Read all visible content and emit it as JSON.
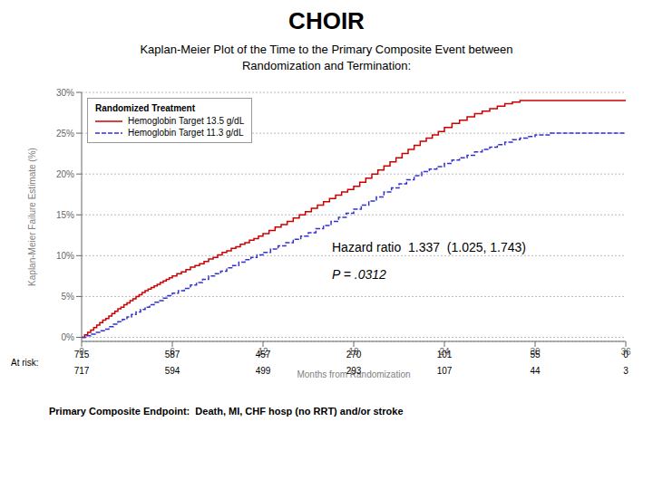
{
  "chart_data": {
    "type": "step",
    "title": "CHOIR",
    "subtitle": "Kaplan-Meier Plot of the Time to the Primary Composite Event between\nRandomization and Termination:",
    "xlabel": "Months from Randomization",
    "ylabel": "Kaplan-Meier Failure Estimate (%)",
    "xlim": [
      0,
      36
    ],
    "ylim": [
      -0.5,
      30
    ],
    "xticks": [
      0,
      6,
      12,
      18,
      24,
      30,
      36
    ],
    "yticks": [
      {
        "value": 0,
        "label": "0%"
      },
      {
        "value": 5,
        "label": "5%"
      },
      {
        "value": 10,
        "label": "10%"
      },
      {
        "value": 15,
        "label": "15%"
      },
      {
        "value": 20,
        "label": "20%"
      },
      {
        "value": 25,
        "label": "25%"
      },
      {
        "value": 30,
        "label": "30%"
      }
    ],
    "grid": "y",
    "legend": "upper left",
    "legend_title": "Randomized Treatment",
    "series": [
      {
        "name": "Hemoglobin Target 13.5 g/dL",
        "color": "#cc0000",
        "line_style": "solid",
        "x": [
          0,
          0.2,
          0.4,
          0.6,
          0.8,
          1.0,
          1.2,
          1.4,
          1.6,
          1.8,
          2.0,
          2.2,
          2.4,
          2.6,
          2.8,
          3.0,
          3.2,
          3.4,
          3.6,
          3.8,
          4.0,
          4.2,
          4.4,
          4.6,
          4.8,
          5.0,
          5.2,
          5.4,
          5.6,
          5.8,
          6.0,
          6.3,
          6.6,
          6.9,
          7.2,
          7.5,
          7.8,
          8.1,
          8.4,
          8.7,
          9.0,
          9.3,
          9.6,
          9.9,
          10.2,
          10.5,
          10.8,
          11.1,
          11.4,
          11.7,
          12.0,
          12.4,
          12.8,
          13.2,
          13.6,
          14.0,
          14.4,
          14.8,
          15.2,
          15.6,
          16.0,
          16.4,
          16.8,
          17.2,
          17.6,
          18.0,
          18.4,
          18.8,
          19.2,
          19.6,
          20.0,
          20.4,
          20.8,
          21.2,
          21.6,
          22.0,
          22.4,
          22.8,
          23.2,
          23.6,
          24.0,
          24.5,
          25.0,
          25.5,
          26.0,
          26.5,
          27.0,
          27.5,
          28.0,
          28.5,
          29.0,
          29.5,
          30.0,
          31.0,
          36.0
        ],
        "values": [
          0,
          0.3,
          0.6,
          0.9,
          1.2,
          1.5,
          1.8,
          2.1,
          2.3,
          2.6,
          2.9,
          3.2,
          3.5,
          3.7,
          4.0,
          4.2,
          4.5,
          4.7,
          5.0,
          5.2,
          5.5,
          5.7,
          5.9,
          6.1,
          6.3,
          6.5,
          6.7,
          6.9,
          7.1,
          7.3,
          7.5,
          7.8,
          8.0,
          8.3,
          8.6,
          8.8,
          9.0,
          9.3,
          9.6,
          9.8,
          10.1,
          10.4,
          10.6,
          10.9,
          11.1,
          11.4,
          11.6,
          11.9,
          12.1,
          12.4,
          12.7,
          13.1,
          13.5,
          13.8,
          14.2,
          14.6,
          15.0,
          15.4,
          15.8,
          16.2,
          16.6,
          17.0,
          17.4,
          17.8,
          18.1,
          18.5,
          19.0,
          19.5,
          20.0,
          20.5,
          21.0,
          21.5,
          22.0,
          22.5,
          23.0,
          23.5,
          24.0,
          24.4,
          24.8,
          25.2,
          25.7,
          26.2,
          26.6,
          27.0,
          27.4,
          27.7,
          28.0,
          28.3,
          28.6,
          28.8,
          29.0,
          29.0,
          29.0,
          29.0,
          29.0
        ]
      },
      {
        "name": "Hemoglobin Target 11.3 g/dL",
        "color": "#3333cc",
        "line_style": "dashed",
        "x": [
          0,
          0.3,
          0.6,
          0.9,
          1.2,
          1.5,
          1.8,
          2.1,
          2.4,
          2.7,
          3.0,
          3.3,
          3.6,
          3.9,
          4.2,
          4.5,
          4.8,
          5.1,
          5.4,
          5.7,
          6.0,
          6.4,
          6.8,
          7.2,
          7.6,
          8.0,
          8.4,
          8.8,
          9.2,
          9.6,
          10.0,
          10.4,
          10.8,
          11.2,
          11.6,
          12.0,
          12.5,
          13.0,
          13.5,
          14.0,
          14.5,
          15.0,
          15.5,
          16.0,
          16.5,
          17.0,
          17.5,
          18.0,
          18.5,
          19.0,
          19.5,
          20.0,
          20.5,
          21.0,
          21.5,
          22.0,
          22.5,
          23.0,
          23.5,
          24.0,
          24.5,
          25.0,
          25.5,
          26.0,
          26.5,
          27.0,
          27.5,
          28.0,
          28.5,
          29.0,
          29.5,
          30.0,
          31.0,
          36.0
        ],
        "values": [
          0,
          0.2,
          0.4,
          0.6,
          0.8,
          1.0,
          1.3,
          1.6,
          1.9,
          2.2,
          2.5,
          2.8,
          3.1,
          3.4,
          3.7,
          4.0,
          4.3,
          4.5,
          4.8,
          5.1,
          5.4,
          5.7,
          6.0,
          6.4,
          6.7,
          7.1,
          7.5,
          7.8,
          8.1,
          8.5,
          8.8,
          9.2,
          9.5,
          9.8,
          10.1,
          10.4,
          10.8,
          11.2,
          11.6,
          12.0,
          12.4,
          12.8,
          13.3,
          13.7,
          14.2,
          14.7,
          15.2,
          15.7,
          16.2,
          16.7,
          17.2,
          17.8,
          18.3,
          18.8,
          19.3,
          19.8,
          20.3,
          20.6,
          20.9,
          21.3,
          21.7,
          22.0,
          22.3,
          22.7,
          23.0,
          23.3,
          23.6,
          23.9,
          24.2,
          24.4,
          24.6,
          24.8,
          25.0,
          25.0
        ]
      }
    ],
    "annotations": [
      "Hazard ratio  1.337  (1.025, 1.743)",
      "P = .0312"
    ],
    "at_risk": {
      "label": "At risk:",
      "x": [
        0,
        6,
        12,
        18,
        24,
        30,
        36
      ],
      "rows": [
        [
          715,
          587,
          457,
          270,
          101,
          55,
          0
        ],
        [
          717,
          594,
          499,
          293,
          107,
          44,
          3
        ]
      ]
    },
    "footnote": "Primary Composite Endpoint:  Death, MI, CHF hosp (no RRT) and/or stroke"
  }
}
